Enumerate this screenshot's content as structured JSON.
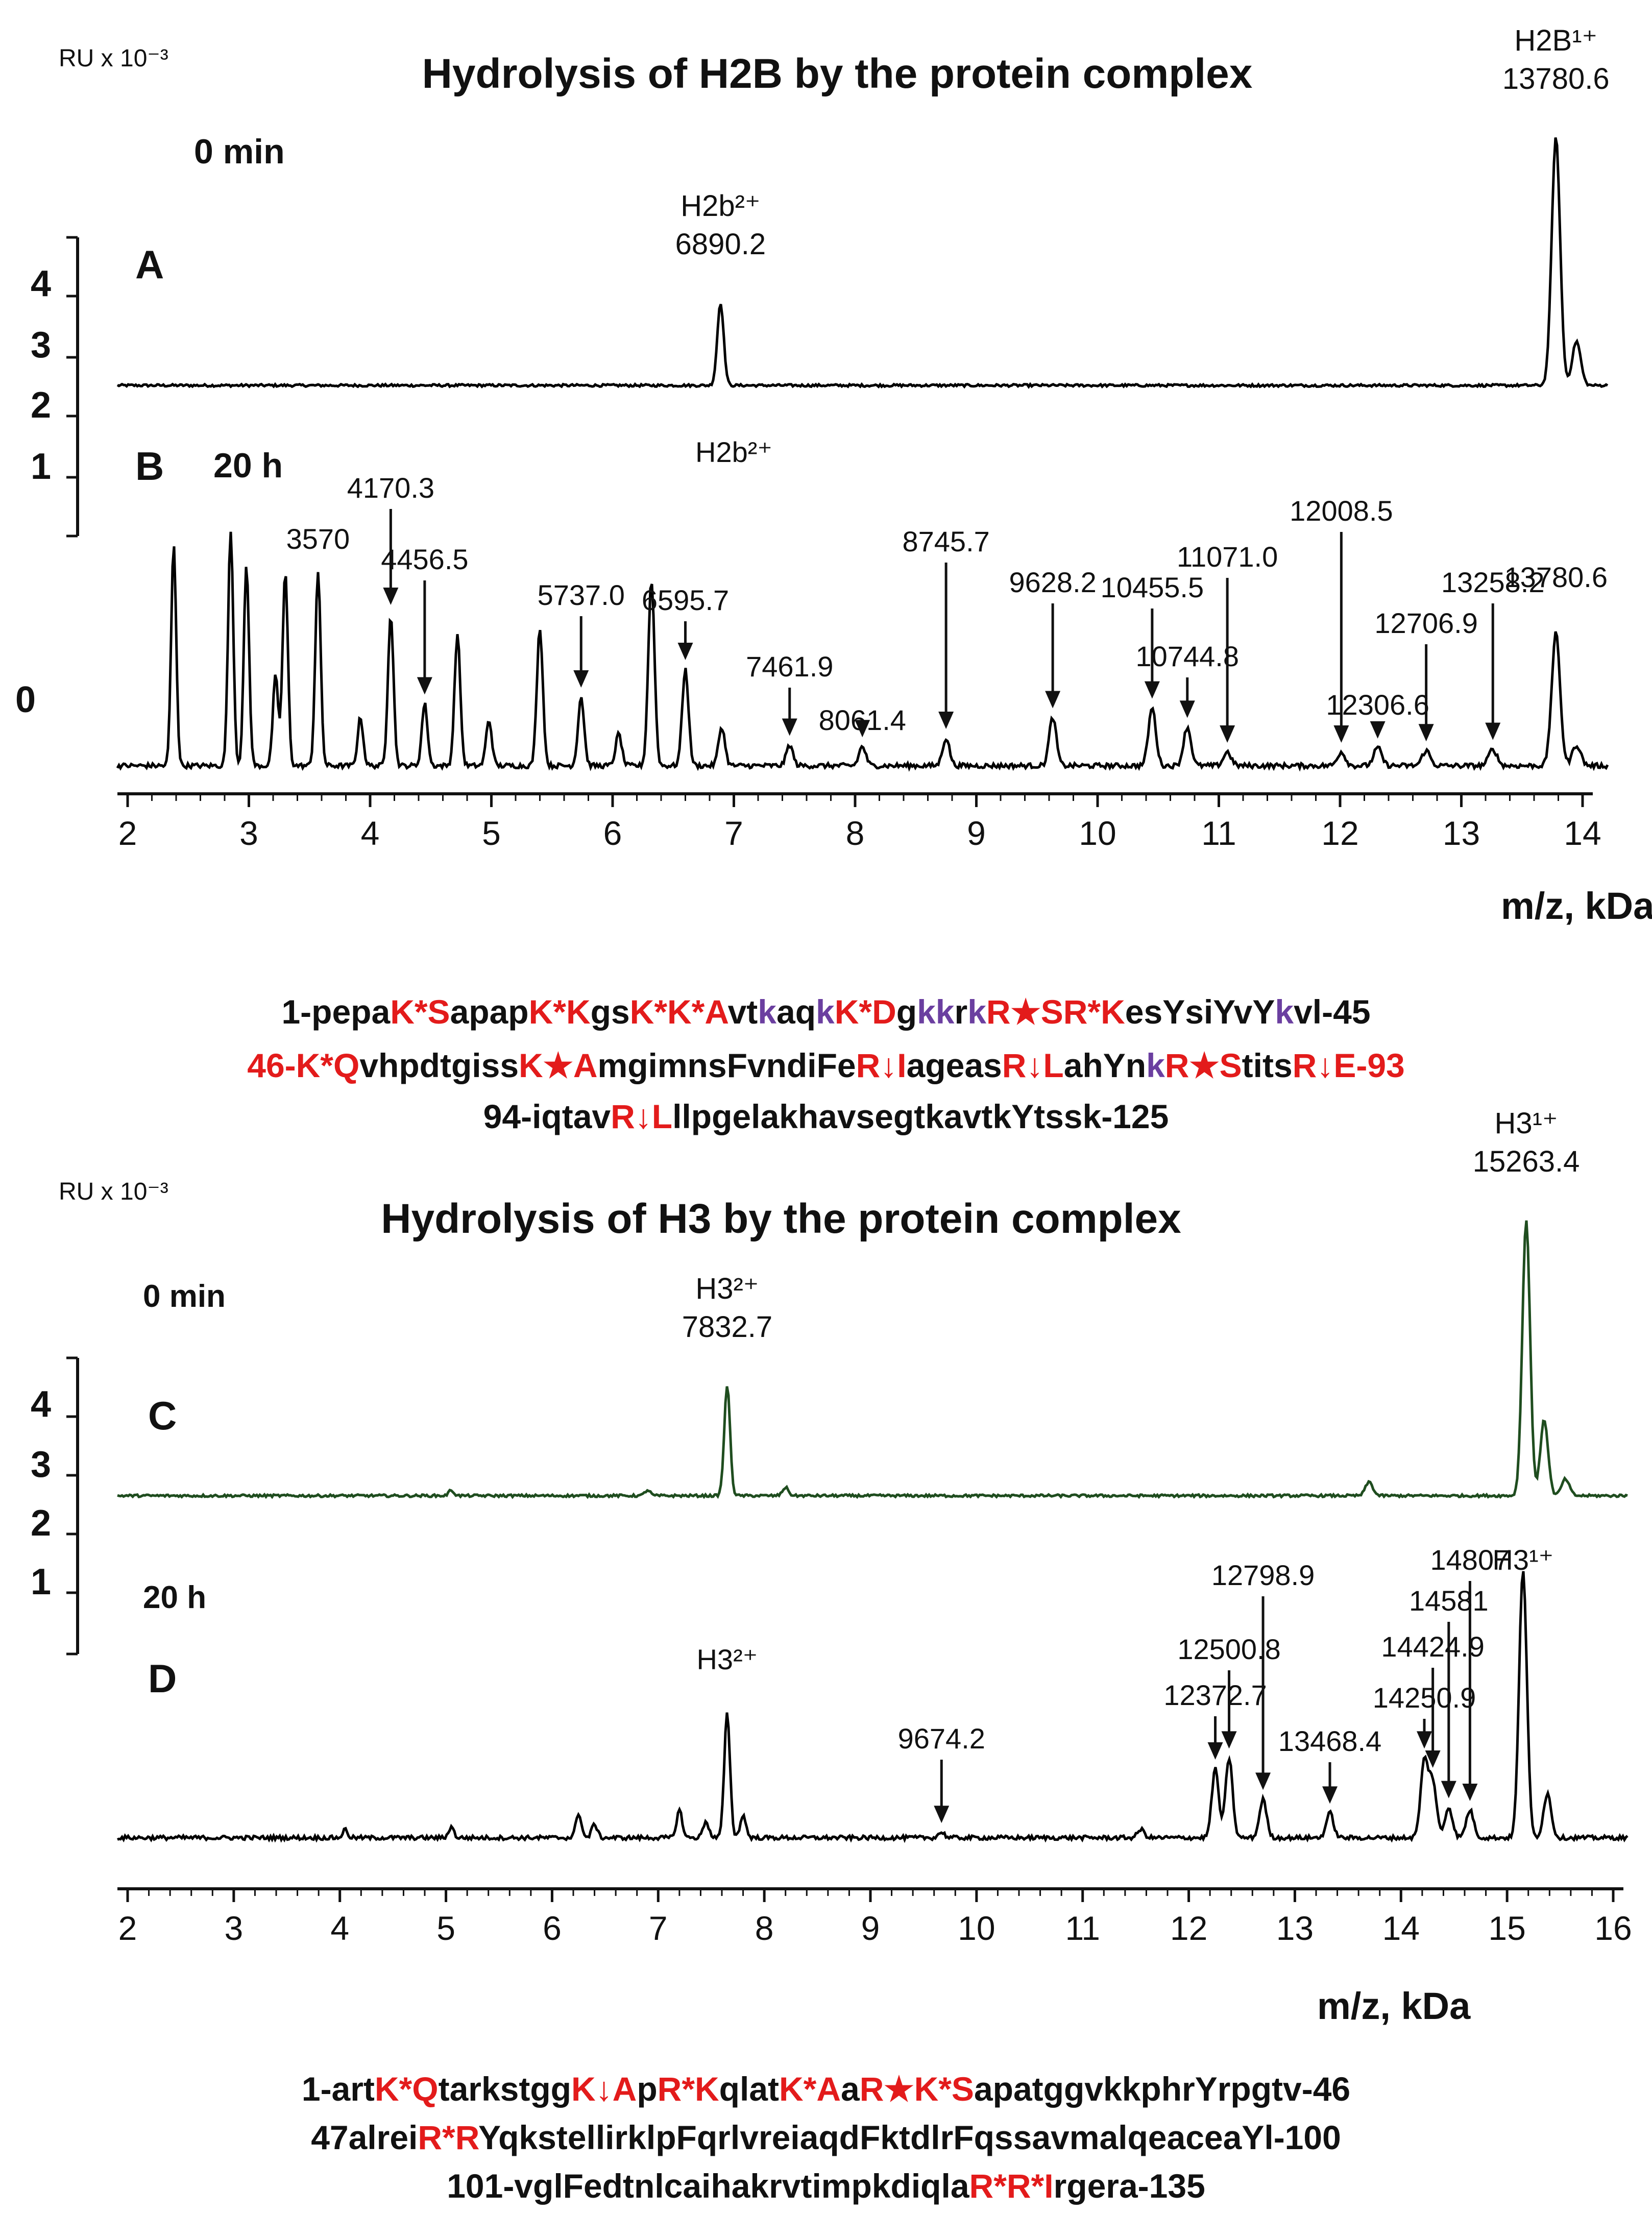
{
  "panels": [
    {
      "id": "A",
      "label": "A"
    },
    {
      "id": "B",
      "label": "B"
    },
    {
      "id": "C",
      "label": "C"
    },
    {
      "id": "D",
      "label": "D"
    }
  ],
  "chart_data": [
    {
      "type": "line",
      "title": "Hydrolysis of H2B by the protein complex",
      "ylabel": "RU x 10⁻³",
      "xlabel": "m/z, kDa",
      "xlim": [
        2,
        14
      ],
      "xticks": [
        "2",
        "3",
        "4",
        "5",
        "6",
        "7",
        "8",
        "9",
        "10",
        "11",
        "12",
        "13",
        "14"
      ],
      "yticks": [
        "4",
        "3",
        "2",
        "1",
        "0"
      ],
      "series": [
        {
          "panel": "A",
          "time_label": "0 min",
          "color": "#000000",
          "peaks": [
            [
              6.89,
              0.6
            ],
            [
              13.78,
              1.8
            ],
            [
              13.95,
              0.32
            ]
          ],
          "labels": [
            {
              "text": "H2b²⁺",
              "x": 6.89,
              "line": 1
            },
            {
              "text": "6890.2",
              "x": 6.89,
              "line": 2
            },
            {
              "text": "H2B¹⁺",
              "x": 13.78,
              "line": 1
            },
            {
              "text": "13780.6",
              "x": 13.78,
              "line": 2
            }
          ]
        },
        {
          "panel": "B",
          "time_label": "20 h",
          "color": "#000000",
          "peaks": [
            [
              2.38,
              1.6
            ],
            [
              2.85,
              1.7
            ],
            [
              2.98,
              1.45
            ],
            [
              3.22,
              0.65
            ],
            [
              3.3,
              1.4
            ],
            [
              3.57,
              1.4
            ],
            [
              3.92,
              0.35
            ],
            [
              4.17,
              1.1
            ],
            [
              4.45,
              0.45
            ],
            [
              4.72,
              0.95
            ],
            [
              4.98,
              0.33
            ],
            [
              5.4,
              1.0
            ],
            [
              5.74,
              0.5
            ],
            [
              6.05,
              0.23
            ],
            [
              6.32,
              1.35
            ],
            [
              6.6,
              0.7
            ],
            [
              6.9,
              0.28
            ],
            [
              7.46,
              0.15
            ],
            [
              8.06,
              0.14
            ],
            [
              8.75,
              0.2
            ],
            [
              9.63,
              0.35
            ],
            [
              10.45,
              0.42
            ],
            [
              10.74,
              0.28
            ],
            [
              11.07,
              0.1
            ],
            [
              12.01,
              0.1
            ],
            [
              12.31,
              0.13
            ],
            [
              12.71,
              0.11
            ],
            [
              13.26,
              0.12
            ],
            [
              13.78,
              0.96
            ],
            [
              13.95,
              0.15
            ]
          ],
          "annotations": [
            {
              "text": "3570",
              "x": 3.57,
              "arrow": false
            },
            {
              "text": "4170.3",
              "x": 4.17,
              "arrow": true
            },
            {
              "text": "4456.5",
              "x": 4.45,
              "arrow": true
            },
            {
              "text": "5737.0",
              "x": 5.74,
              "arrow": true
            },
            {
              "text": "6595.7",
              "x": 6.6,
              "arrow": true
            },
            {
              "text": "H2b²⁺",
              "x": 7.0,
              "arrow": false
            },
            {
              "text": "7461.9",
              "x": 7.46,
              "arrow": true
            },
            {
              "text": "8061.4",
              "x": 8.06,
              "arrow": true
            },
            {
              "text": "8745.7",
              "x": 8.75,
              "arrow": true
            },
            {
              "text": "9628.2",
              "x": 9.63,
              "arrow": true
            },
            {
              "text": "10455.5",
              "x": 10.45,
              "arrow": true
            },
            {
              "text": "10744.8",
              "x": 10.74,
              "arrow": true
            },
            {
              "text": "11071.0",
              "x": 11.07,
              "arrow": true
            },
            {
              "text": "12008.5",
              "x": 12.01,
              "arrow": true
            },
            {
              "text": "12306.6",
              "x": 12.31,
              "arrow": true
            },
            {
              "text": "12706.9",
              "x": 12.71,
              "arrow": true
            },
            {
              "text": "13258.2",
              "x": 13.26,
              "arrow": true
            },
            {
              "text": "13780.6",
              "x": 13.78,
              "arrow": false
            }
          ]
        }
      ]
    },
    {
      "type": "line",
      "title": "Hydrolysis of H3 by the protein complex",
      "ylabel": "RU x 10⁻³",
      "xlabel": "m/z, kDa",
      "xlim": [
        2,
        16
      ],
      "xticks": [
        "2",
        "3",
        "4",
        "5",
        "6",
        "7",
        "8",
        "9",
        "10",
        "11",
        "12",
        "13",
        "14",
        "15",
        "16"
      ],
      "yticks": [
        "4",
        "3",
        "2",
        "1"
      ],
      "series": [
        {
          "panel": "C",
          "time_label": "0 min",
          "color": "#1f4d1f",
          "peaks": [
            [
              5.05,
              0.04
            ],
            [
              6.9,
              0.04
            ],
            [
              7.65,
              0.8
            ],
            [
              8.2,
              0.06
            ],
            [
              13.7,
              0.1
            ],
            [
              15.18,
              2.0
            ],
            [
              15.35,
              0.55
            ],
            [
              15.55,
              0.12
            ]
          ],
          "labels": [
            {
              "text": "H3²⁺",
              "x": 7.65,
              "line": 1
            },
            {
              "text": "7832.7",
              "x": 7.65,
              "line": 2
            },
            {
              "text": "H3¹⁺",
              "x": 15.18,
              "line": 1
            },
            {
              "text": "15263.4",
              "x": 15.18,
              "line": 2
            }
          ]
        },
        {
          "panel": "D",
          "time_label": "20 h",
          "color": "#000000",
          "peaks": [
            [
              4.05,
              0.06
            ],
            [
              5.05,
              0.08
            ],
            [
              6.25,
              0.18
            ],
            [
              6.4,
              0.1
            ],
            [
              7.2,
              0.2
            ],
            [
              7.45,
              0.12
            ],
            [
              7.65,
              0.9
            ],
            [
              7.8,
              0.16
            ],
            [
              9.67,
              0.04
            ],
            [
              11.55,
              0.06
            ],
            [
              12.25,
              0.5
            ],
            [
              12.38,
              0.58
            ],
            [
              12.7,
              0.28
            ],
            [
              13.33,
              0.18
            ],
            [
              14.22,
              0.55
            ],
            [
              14.3,
              0.4
            ],
            [
              14.45,
              0.22
            ],
            [
              14.65,
              0.2
            ],
            [
              15.15,
              1.95
            ],
            [
              15.38,
              0.32
            ]
          ],
          "annotations": [
            {
              "text": "H3²⁺",
              "x": 7.65,
              "arrow": false
            },
            {
              "text": "9674.2",
              "x": 9.67,
              "arrow": true
            },
            {
              "text": "12372.7",
              "x": 12.25,
              "arrow": true
            },
            {
              "text": "12500.8",
              "x": 12.38,
              "arrow": true
            },
            {
              "text": "12798.9",
              "x": 12.7,
              "arrow": true
            },
            {
              "text": "13468.4",
              "x": 13.33,
              "arrow": true
            },
            {
              "text": "14250.9",
              "x": 14.22,
              "arrow": true
            },
            {
              "text": "14424.9",
              "x": 14.3,
              "arrow": true
            },
            {
              "text": "14581",
              "x": 14.45,
              "arrow": true
            },
            {
              "text": "14807",
              "x": 14.65,
              "arrow": true
            },
            {
              "text": "H3¹⁺",
              "x": 15.15,
              "arrow": false
            }
          ]
        }
      ]
    }
  ],
  "sequences": {
    "h2b": [
      [
        [
          "1-pepa",
          "k"
        ],
        [
          "K*S",
          "r"
        ],
        [
          "apap",
          "k"
        ],
        [
          "K*K",
          "r"
        ],
        [
          "gs",
          "k"
        ],
        [
          "K*K*A",
          "r"
        ],
        [
          "vt",
          "k"
        ],
        [
          "k",
          "p"
        ],
        [
          "aq",
          "k"
        ],
        [
          "k",
          "p"
        ],
        [
          "K*D",
          "r"
        ],
        [
          "g",
          "k"
        ],
        [
          "kk",
          "p"
        ],
        [
          "r",
          "k"
        ],
        [
          "k",
          "p"
        ],
        [
          "R★SR*K",
          "r"
        ],
        [
          "esYsiYvY",
          "k"
        ],
        [
          "k",
          "p"
        ],
        [
          "vl-45",
          "k"
        ]
      ],
      [
        [
          "46-K*Q",
          "r"
        ],
        [
          "vhpdtgiss",
          "k"
        ],
        [
          "K★A",
          "r"
        ],
        [
          "mgimnsFvndiFe",
          "k"
        ],
        [
          "R↓I",
          "r"
        ],
        [
          "ageas",
          "k"
        ],
        [
          "R↓L",
          "r"
        ],
        [
          "ahYn",
          "k"
        ],
        [
          "k",
          "p"
        ],
        [
          "R★S",
          "r"
        ],
        [
          "tits",
          "k"
        ],
        [
          "R↓E-93",
          "r"
        ]
      ],
      [
        [
          "94-iqtav",
          "k"
        ],
        [
          "R↓L",
          "r"
        ],
        [
          "llpgelakhavsegtkavtkYtssk-125",
          "k"
        ]
      ]
    ],
    "h3": [
      [
        [
          "1-art",
          "k"
        ],
        [
          "K*Q",
          "r"
        ],
        [
          "tarkstgg",
          "k"
        ],
        [
          "K↓A",
          "r"
        ],
        [
          "p",
          "k"
        ],
        [
          "R*K",
          "r"
        ],
        [
          "qlat",
          "k"
        ],
        [
          "K*A",
          "r"
        ],
        [
          "a",
          "k"
        ],
        [
          "R★K*S",
          "r"
        ],
        [
          "apatggvkkphrYrpgtv-46",
          "k"
        ]
      ],
      [
        [
          "47alrei",
          "k"
        ],
        [
          "R*R",
          "r"
        ],
        [
          "YqkstellirklpFqrlvreiaqdFktdlrFqssavmalqeaceaYl-100",
          "k"
        ]
      ],
      [
        [
          "101-vglFedtnlcaihakrvtimpkdiqla",
          "k"
        ],
        [
          "R*R*I",
          "r"
        ],
        [
          "rgera-135",
          "k"
        ]
      ]
    ]
  }
}
